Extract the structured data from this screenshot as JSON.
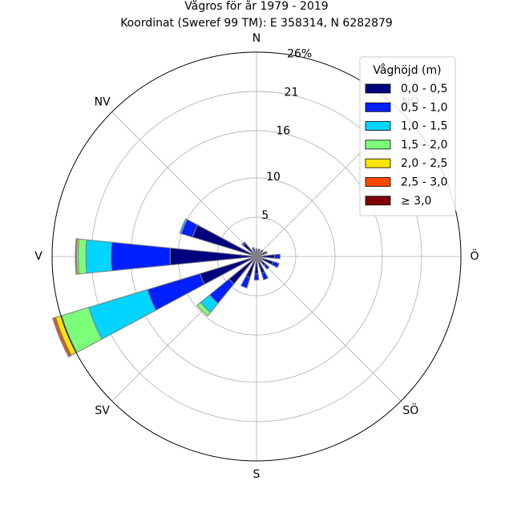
{
  "chart_data": {
    "type": "wind_rose",
    "title": "Vågros för år 1979 - 2019",
    "subtitle": "Koordinat (Sweref 99 TM): E 358314, N 6282879",
    "directions": [
      "N",
      "NV",
      "V",
      "SV",
      "S",
      "SÖ",
      "Ö",
      "NÖ"
    ],
    "direction_angles": {
      "N": 0,
      "NÖ": 45,
      "Ö": 90,
      "SÖ": 135,
      "S": 180,
      "SV": 225,
      "V": 270,
      "NV": 315
    },
    "radial_ticks": [
      5,
      10,
      16,
      21,
      26
    ],
    "radial_tick_labels": [
      "5",
      "10",
      "16",
      "21",
      "26%"
    ],
    "rmax": 26,
    "legend": {
      "title": "Våghöjd (m)",
      "placement": "top-right",
      "entries": [
        {
          "label": "0,0 - 0,5",
          "color": "#00007f"
        },
        {
          "label": "0,5 - 1,0",
          "color": "#0020ff"
        },
        {
          "label": "1,0 - 1,5",
          "color": "#00d4ff"
        },
        {
          "label": "1,5 - 2,0",
          "color": "#7cff79"
        },
        {
          "label": "2,0 - 2,5",
          "color": "#ffe500"
        },
        {
          "label": "2,5 - 3,0",
          "color": "#ff4800"
        },
        {
          "label": "≥ 3,0",
          "color": "#7f0000"
        }
      ]
    },
    "sector_width_deg": 11.25,
    "sectors": [
      {
        "dir_deg": 0,
        "values": [
          0.9,
          0.1,
          0,
          0,
          0,
          0,
          0
        ]
      },
      {
        "dir_deg": 22.5,
        "values": [
          0.9,
          0.1,
          0,
          0,
          0,
          0,
          0
        ]
      },
      {
        "dir_deg": 45,
        "values": [
          1.0,
          0.1,
          0,
          0,
          0,
          0,
          0
        ]
      },
      {
        "dir_deg": 67.5,
        "values": [
          1.2,
          0.2,
          0,
          0,
          0,
          0,
          0
        ]
      },
      {
        "dir_deg": 90,
        "values": [
          2.3,
          0.7,
          0,
          0,
          0,
          0,
          0
        ]
      },
      {
        "dir_deg": 112.5,
        "values": [
          2.2,
          0.8,
          0,
          0,
          0,
          0,
          0
        ]
      },
      {
        "dir_deg": 135,
        "values": [
          1.5,
          0.6,
          0,
          0,
          0,
          0,
          0
        ]
      },
      {
        "dir_deg": 157.5,
        "values": [
          2.2,
          0.9,
          0,
          0,
          0,
          0,
          0
        ]
      },
      {
        "dir_deg": 180,
        "values": [
          2.2,
          0.8,
          0,
          0,
          0,
          0,
          0
        ]
      },
      {
        "dir_deg": 202.5,
        "values": [
          2.8,
          1.4,
          0,
          0,
          0,
          0,
          0
        ]
      },
      {
        "dir_deg": 225,
        "values": [
          4.5,
          3.2,
          1.5,
          0.6,
          0,
          0,
          0
        ]
      },
      {
        "dir_deg": 247.5,
        "values": [
          7.5,
          7.0,
          7.8,
          3.6,
          0.8,
          0.3,
          0.1
        ]
      },
      {
        "dir_deg": 270,
        "values": [
          11.0,
          7.5,
          3.2,
          1.0,
          0.2,
          0.1,
          0.05
        ]
      },
      {
        "dir_deg": 292.5,
        "values": [
          8.5,
          1.5,
          0.2,
          0,
          0,
          0,
          0
        ]
      },
      {
        "dir_deg": 315,
        "values": [
          2.2,
          0.2,
          0,
          0,
          0,
          0,
          0
        ]
      },
      {
        "dir_deg": 337.5,
        "values": [
          1.1,
          0.1,
          0,
          0,
          0,
          0,
          0
        ]
      }
    ]
  }
}
